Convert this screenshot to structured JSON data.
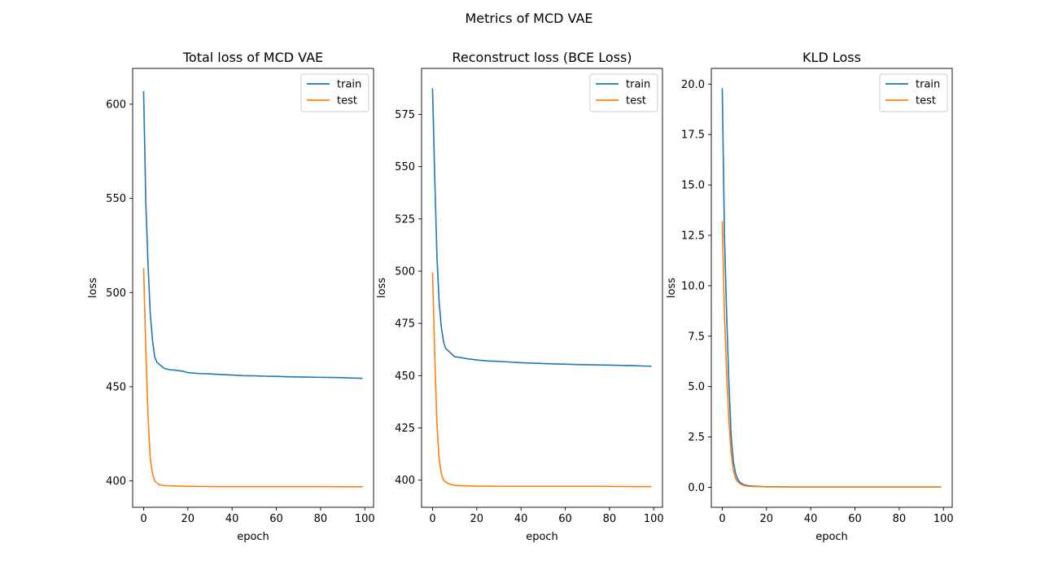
{
  "figure": {
    "suptitle": "Metrics of MCD VAE"
  },
  "colors": {
    "train": "#1f77b4",
    "test": "#ff7f0e",
    "axes": "#000000",
    "background": "#ffffff"
  },
  "chart_data": [
    {
      "type": "line",
      "title": "Total loss of MCD VAE",
      "xlabel": "epoch",
      "ylabel": "loss",
      "xlim": [
        -4.95,
        103.95
      ],
      "ylim": [
        386,
        619
      ],
      "xticks": [
        0,
        20,
        40,
        60,
        80,
        100
      ],
      "yticks": [
        400,
        450,
        500,
        550,
        600
      ],
      "legend_loc": "upper right",
      "grid": false,
      "series": [
        {
          "name": "train",
          "color": "#1f77b4",
          "x": [
            0,
            1,
            2,
            3,
            4,
            5,
            6,
            7,
            8,
            9,
            10,
            12,
            14,
            16,
            18,
            20,
            25,
            30,
            35,
            40,
            45,
            50,
            55,
            60,
            65,
            70,
            75,
            80,
            85,
            90,
            95,
            99
          ],
          "y": [
            607,
            548,
            515,
            489,
            475,
            466,
            463,
            462,
            461,
            460,
            459.5,
            459,
            458.8,
            458.5,
            458.2,
            457.5,
            457,
            456.8,
            456.5,
            456.2,
            455.9,
            455.8,
            455.6,
            455.5,
            455.3,
            455.2,
            455.1,
            455,
            454.9,
            454.8,
            454.6,
            454.5
          ]
        },
        {
          "name": "test",
          "color": "#ff7f0e",
          "x": [
            0,
            1,
            2,
            3,
            4,
            5,
            6,
            7,
            8,
            9,
            10,
            12,
            14,
            16,
            18,
            20,
            25,
            30,
            40,
            50,
            60,
            70,
            80,
            90,
            99
          ],
          "y": [
            513,
            470,
            434,
            412,
            404,
            400,
            399,
            398,
            397.8,
            397.6,
            397.5,
            397.4,
            397.3,
            397.2,
            397.2,
            397.1,
            397.1,
            397,
            397,
            397,
            397,
            397,
            397,
            396.9,
            396.9
          ]
        }
      ]
    },
    {
      "type": "line",
      "title": "Reconstruct loss (BCE Loss)",
      "xlabel": "epoch",
      "ylabel": "loss",
      "xlim": [
        -4.95,
        103.95
      ],
      "ylim": [
        387,
        597
      ],
      "xticks": [
        0,
        20,
        40,
        60,
        80,
        100
      ],
      "yticks": [
        400,
        425,
        450,
        475,
        500,
        525,
        550,
        575
      ],
      "legend_loc": "upper right",
      "grid": false,
      "series": [
        {
          "name": "train",
          "color": "#1f77b4",
          "x": [
            0,
            1,
            2,
            3,
            4,
            5,
            6,
            7,
            8,
            9,
            10,
            12,
            14,
            16,
            18,
            20,
            25,
            30,
            35,
            40,
            45,
            50,
            55,
            60,
            65,
            70,
            75,
            80,
            85,
            90,
            95,
            99
          ],
          "y": [
            587.5,
            545,
            507,
            485,
            473,
            466,
            463,
            462,
            461,
            460,
            459,
            458.8,
            458.4,
            458,
            457.8,
            457.5,
            457,
            456.8,
            456.5,
            456.2,
            456,
            455.8,
            455.6,
            455.5,
            455.3,
            455.2,
            455.1,
            455,
            454.9,
            454.8,
            454.6,
            454.5
          ]
        },
        {
          "name": "test",
          "color": "#ff7f0e",
          "x": [
            0,
            1,
            2,
            3,
            4,
            5,
            6,
            7,
            8,
            9,
            10,
            12,
            14,
            16,
            18,
            20,
            25,
            30,
            40,
            50,
            60,
            70,
            80,
            90,
            99
          ],
          "y": [
            499.5,
            460,
            427,
            410,
            403,
            400,
            399,
            398.5,
            398,
            397.7,
            397.5,
            397.4,
            397.3,
            397.2,
            397.2,
            397.1,
            397.1,
            397,
            397,
            397,
            397,
            397,
            397,
            396.9,
            396.9
          ]
        }
      ]
    },
    {
      "type": "line",
      "title": "KLD Loss",
      "xlabel": "epoch",
      "ylabel": "loss",
      "xlim": [
        -4.95,
        103.95
      ],
      "ylim": [
        -0.99,
        20.78
      ],
      "xticks": [
        0,
        20,
        40,
        60,
        80,
        100
      ],
      "yticks": [
        0.0,
        2.5,
        5.0,
        7.5,
        10.0,
        12.5,
        15.0,
        17.5,
        20.0
      ],
      "legend_loc": "upper right",
      "grid": false,
      "series": [
        {
          "name": "train",
          "color": "#1f77b4",
          "x": [
            0,
            1,
            2,
            3,
            4,
            5,
            6,
            7,
            8,
            9,
            10,
            12,
            14,
            16,
            18,
            20,
            25,
            30,
            40,
            50,
            60,
            70,
            80,
            90,
            99
          ],
          "y": [
            19.8,
            12.5,
            8.5,
            5.2,
            2.6,
            1.3,
            0.7,
            0.4,
            0.25,
            0.18,
            0.12,
            0.08,
            0.06,
            0.05,
            0.04,
            0.03,
            0.03,
            0.02,
            0.02,
            0.02,
            0.02,
            0.02,
            0.02,
            0.02,
            0.02
          ]
        },
        {
          "name": "test",
          "color": "#ff7f0e",
          "x": [
            0,
            1,
            2,
            3,
            4,
            5,
            6,
            7,
            8,
            9,
            10,
            12,
            14,
            16,
            18,
            20,
            25,
            30,
            40,
            50,
            60,
            70,
            80,
            90,
            99
          ],
          "y": [
            13.2,
            8.5,
            5.6,
            3.3,
            1.7,
            0.85,
            0.45,
            0.28,
            0.18,
            0.12,
            0.08,
            0.05,
            0.04,
            0.03,
            0.03,
            0.02,
            0.02,
            0.02,
            0.02,
            0.02,
            0.02,
            0.02,
            0.02,
            0.02,
            0.02
          ]
        }
      ]
    }
  ]
}
